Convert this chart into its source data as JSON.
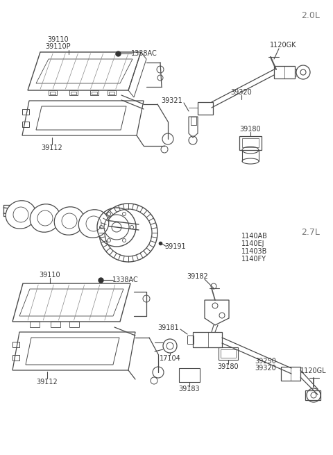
{
  "bg_color": "#ffffff",
  "lc": "#4a4a4a",
  "tc": "#333333",
  "gray": "#888888",
  "section_2L": "2.0L",
  "section_27L": "2.7L",
  "labels": {
    "l_ecu1": "39110",
    "l_ecu2": "39110P",
    "l_bolt": "1338AC",
    "l_bracket": "39112",
    "r_bolt": "1120GK",
    "r_wire": "39320",
    "r_clip": "39321",
    "r_sensor": "39180",
    "m_ring": "39191",
    "m_b1": "1140AB",
    "m_b2": "1140EJ",
    "m_b3": "11403B",
    "m_b4": "1140FY",
    "b_bracket": "39182",
    "b_ecu": "39110",
    "b_bolt": "1338AC",
    "b_brack2": "39112",
    "b_s1": "39181",
    "b_grom": "17104",
    "b_s2": "39180",
    "b_s3": "39183",
    "b_rs1": "39250",
    "b_rs2": "39320",
    "b_rbolt": "1120GL"
  }
}
